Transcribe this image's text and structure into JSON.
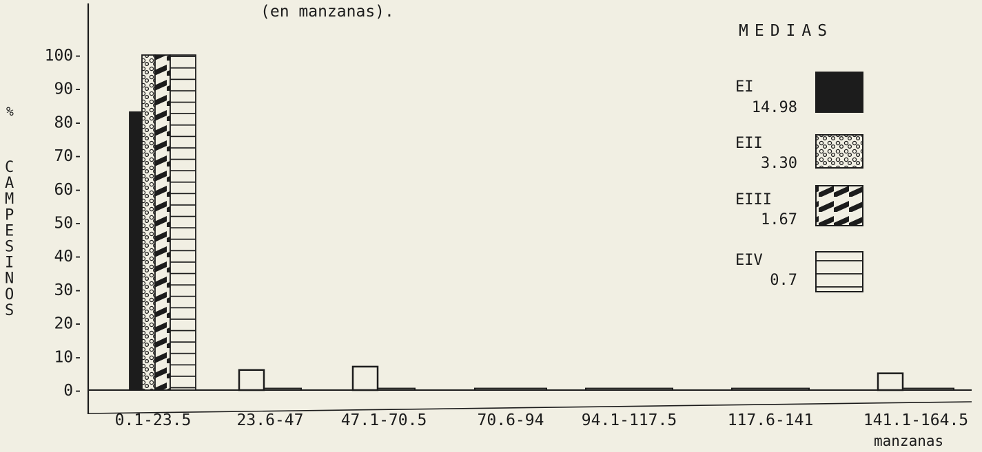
{
  "chart_data": {
    "type": "bar",
    "title": "(en manzanas).",
    "xlabel": "manzanas",
    "ylabel": "% CAMPESINOS",
    "ylim": [
      0,
      100
    ],
    "yticks": [
      "100-",
      "90-",
      "80-",
      "70-",
      "60-",
      "50-",
      "40-",
      "30-",
      "20-",
      "10-",
      "0-"
    ],
    "categories": [
      "0.1-23.5",
      "23.6-47",
      "47.1-70.5",
      "70.6-94",
      "94.1-117.5",
      "117.6-141",
      "141.1-164.5"
    ],
    "legend_title": "MEDIAS",
    "series": [
      {
        "name": "EI",
        "mean": "14.98",
        "pattern": "solid",
        "values": [
          83,
          0,
          0,
          0,
          0,
          0,
          0
        ]
      },
      {
        "name": "EII",
        "mean": "3.30",
        "pattern": "circles",
        "values": [
          100,
          0,
          0,
          0,
          0,
          0,
          0
        ]
      },
      {
        "name": "EIII",
        "mean": "1.67",
        "pattern": "diagonal",
        "values": [
          100,
          0,
          0,
          0,
          0,
          0,
          0
        ]
      },
      {
        "name": "EIV",
        "mean": "0.7",
        "pattern": "horizontal-lines",
        "values": [
          100,
          6,
          7,
          0.5,
          0.5,
          0.5,
          5
        ]
      }
    ],
    "legend_position": "right",
    "grid": false
  },
  "colors": {
    "background": "#f1efe3",
    "ink": "#1c1c1c"
  }
}
